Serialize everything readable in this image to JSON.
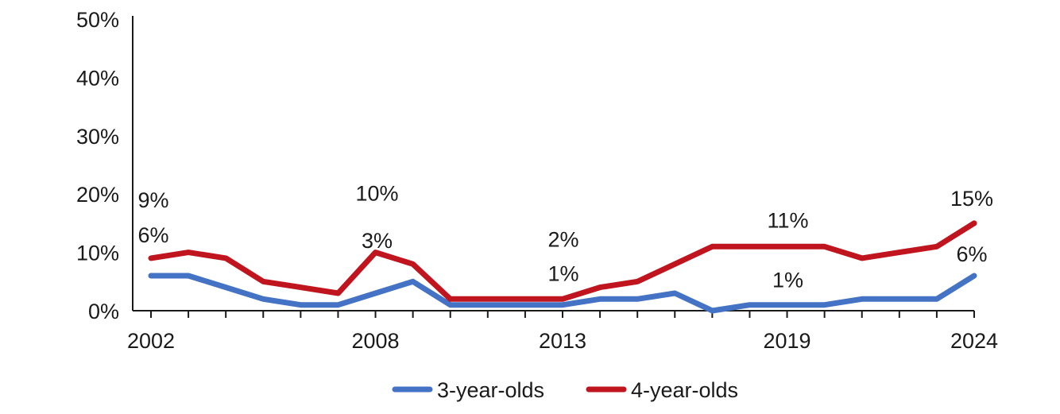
{
  "chart_data": {
    "type": "line",
    "title": "",
    "xlabel": "",
    "ylabel": "",
    "x": [
      2002,
      2003,
      2004,
      2005,
      2006,
      2007,
      2008,
      2009,
      2010,
      2011,
      2012,
      2013,
      2014,
      2015,
      2016,
      2017,
      2018,
      2019,
      2020,
      2021,
      2022,
      2023,
      2024
    ],
    "x_tick_labels": [
      "2002",
      "2008",
      "2013",
      "2019",
      "2024"
    ],
    "ylim": [
      0,
      50
    ],
    "y_ticks": [
      0,
      10,
      20,
      30,
      40,
      50
    ],
    "y_tick_labels": [
      "0%",
      "10%",
      "20%",
      "30%",
      "40%",
      "50%"
    ],
    "legend_position": "bottom",
    "grid": false,
    "series": [
      {
        "name": "3-year-olds",
        "color": "#4472C4",
        "values": [
          6,
          6,
          4,
          2,
          1,
          1,
          3,
          5,
          1,
          1,
          1,
          1,
          2,
          2,
          3,
          0,
          1,
          1,
          1,
          2,
          2,
          2,
          6
        ],
        "labels": [
          {
            "x": 2002,
            "text": "6%"
          },
          {
            "x": 2008,
            "text": "3%"
          },
          {
            "x": 2013,
            "text": "1%"
          },
          {
            "x": 2019,
            "text": "1%"
          },
          {
            "x": 2024,
            "text": "6%"
          }
        ]
      },
      {
        "name": "4-year-olds",
        "color": "#C0141E",
        "values": [
          9,
          10,
          9,
          5,
          4,
          3,
          10,
          8,
          2,
          2,
          2,
          2,
          4,
          5,
          8,
          11,
          11,
          11,
          11,
          9,
          10,
          11,
          15
        ],
        "labels": [
          {
            "x": 2002,
            "text": "9%"
          },
          {
            "x": 2008,
            "text": "10%"
          },
          {
            "x": 2013,
            "text": "2%"
          },
          {
            "x": 2019,
            "text": "11%"
          },
          {
            "x": 2024,
            "text": "15%"
          }
        ]
      }
    ]
  }
}
